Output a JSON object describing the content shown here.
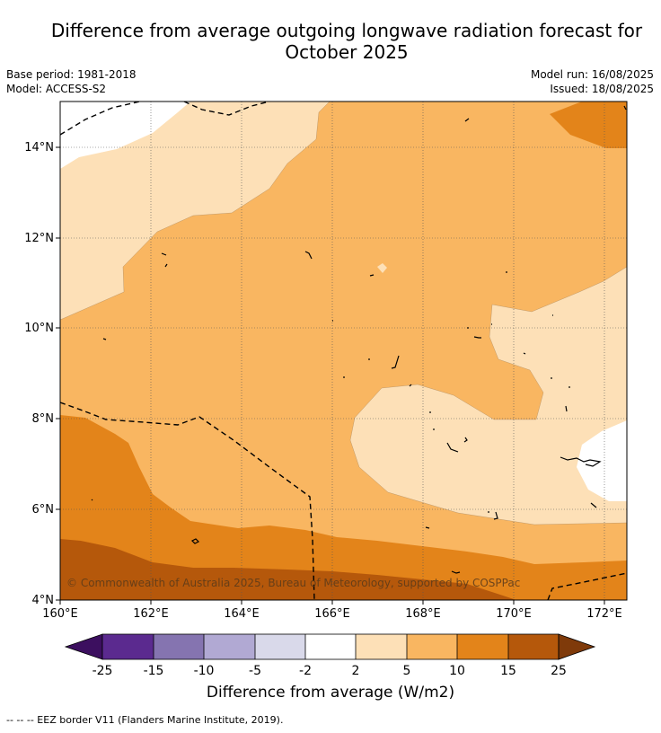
{
  "title_line1": "Difference from average outgoing longwave radiation forecast for",
  "title_line2": "October 2025",
  "base_period": "Base period: 1981-2018",
  "model": "Model: ACCESS-S2",
  "model_run": "Model run: 16/08/2025",
  "issued": "Issued: 18/08/2025",
  "lat_labels": [
    "14°N",
    "12°N",
    "10°N",
    "8°N",
    "6°N",
    "4°N"
  ],
  "lon_labels": [
    "160°E",
    "162°E",
    "164°E",
    "166°E",
    "168°E",
    "170°E",
    "172°E"
  ],
  "copyright": "© Commonwealth of Australia 2025, Bureau of Meteorology, supported by COSPPac",
  "colorbar": {
    "ticks": [
      "-25",
      "-15",
      "-10",
      "-5",
      "-2",
      "2",
      "5",
      "10",
      "15",
      "25"
    ],
    "label": "Difference from average (W/m2)",
    "colors": [
      "#3c0f5f",
      "#5b2a8f",
      "#8574b0",
      "#b1a9d3",
      "#d9d9ea",
      "#ffffff",
      "#fde0b7",
      "#f9b661",
      "#e3841a",
      "#b5580b",
      "#7f3a0a"
    ]
  },
  "legend_footer": "--  --  -- EEZ border V11 (Flanders Marine Institute, 2019)."
}
